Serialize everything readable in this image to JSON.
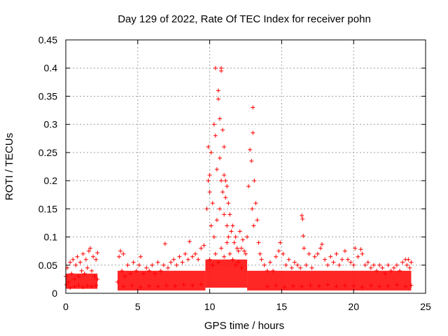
{
  "chart_data": {
    "type": "scatter",
    "title": "Day 129 of 2022, Rate Of TEC Index for receiver pohn",
    "xlabel": "GPS time / hours",
    "ylabel": "ROTI / TECUs",
    "xlim": [
      0,
      25
    ],
    "ylim": [
      0,
      0.45
    ],
    "x_ticks": [
      0,
      5,
      10,
      15,
      20,
      25
    ],
    "y_ticks": [
      0,
      0.05,
      0.1,
      0.15,
      0.2,
      0.25,
      0.3,
      0.35,
      0.4,
      0.45
    ],
    "x_tick_labels": [
      "0",
      "5",
      "10",
      "15",
      "20",
      "25"
    ],
    "y_tick_labels": [
      "0",
      "0.05",
      "0.1",
      "0.15",
      "0.2",
      "0.25",
      "0.3",
      "0.35",
      "0.4",
      "0.45"
    ],
    "grid": true,
    "marker": "plus",
    "color": "#ff0000",
    "series": [
      {
        "points": [
          [
            0.0,
            0.03
          ],
          [
            0.1,
            0.045
          ],
          [
            0.2,
            0.02
          ],
          [
            0.3,
            0.055
          ],
          [
            0.4,
            0.035
          ],
          [
            0.5,
            0.06
          ],
          [
            0.6,
            0.025
          ],
          [
            0.7,
            0.05
          ],
          [
            0.8,
            0.065
          ],
          [
            0.9,
            0.03
          ],
          [
            1.0,
            0.055
          ],
          [
            1.1,
            0.04
          ],
          [
            1.2,
            0.07
          ],
          [
            1.3,
            0.035
          ],
          [
            1.4,
            0.06
          ],
          [
            1.5,
            0.045
          ],
          [
            1.6,
            0.075
          ],
          [
            1.7,
            0.08
          ],
          [
            1.8,
            0.04
          ],
          [
            1.9,
            0.065
          ],
          [
            2.0,
            0.03
          ],
          [
            2.1,
            0.06
          ],
          [
            2.2,
            0.025
          ],
          [
            2.2,
            0.072
          ],
          [
            0.05,
            0.015
          ],
          [
            0.3,
            0.01
          ],
          [
            0.6,
            0.012
          ],
          [
            0.9,
            0.014
          ],
          [
            1.2,
            0.011
          ],
          [
            1.5,
            0.013
          ],
          [
            1.8,
            0.012
          ],
          [
            2.1,
            0.014
          ],
          [
            3.6,
            0.02
          ],
          [
            3.7,
            0.065
          ],
          [
            3.8,
            0.075
          ],
          [
            3.9,
            0.04
          ],
          [
            4.0,
            0.07
          ],
          [
            4.1,
            0.03
          ],
          [
            4.3,
            0.05
          ],
          [
            4.5,
            0.035
          ],
          [
            4.7,
            0.055
          ],
          [
            4.9,
            0.04
          ],
          [
            5.1,
            0.05
          ],
          [
            5.2,
            0.065
          ],
          [
            5.4,
            0.035
          ],
          [
            5.6,
            0.045
          ],
          [
            5.8,
            0.04
          ],
          [
            6.0,
            0.05
          ],
          [
            6.2,
            0.035
          ],
          [
            6.4,
            0.055
          ],
          [
            6.6,
            0.04
          ],
          [
            6.8,
            0.05
          ],
          [
            6.9,
            0.088
          ],
          [
            7.1,
            0.045
          ],
          [
            7.3,
            0.055
          ],
          [
            7.5,
            0.06
          ],
          [
            7.7,
            0.05
          ],
          [
            7.9,
            0.065
          ],
          [
            8.1,
            0.055
          ],
          [
            8.3,
            0.07
          ],
          [
            8.5,
            0.06
          ],
          [
            8.6,
            0.092
          ],
          [
            8.8,
            0.065
          ],
          [
            9.0,
            0.07
          ],
          [
            9.2,
            0.06
          ],
          [
            9.4,
            0.08
          ],
          [
            9.6,
            0.085
          ],
          [
            4.0,
            0.012
          ],
          [
            4.6,
            0.014
          ],
          [
            5.2,
            0.011
          ],
          [
            5.8,
            0.013
          ],
          [
            6.4,
            0.012
          ],
          [
            7.0,
            0.014
          ],
          [
            7.6,
            0.013
          ],
          [
            8.2,
            0.015
          ],
          [
            8.8,
            0.014
          ],
          [
            9.4,
            0.016
          ],
          [
            9.8,
            0.15
          ],
          [
            9.9,
            0.2
          ],
          [
            9.9,
            0.26
          ],
          [
            10.0,
            0.21
          ],
          [
            10.0,
            0.18
          ],
          [
            10.1,
            0.25
          ],
          [
            10.1,
            0.12
          ],
          [
            10.2,
            0.16
          ],
          [
            10.3,
            0.3
          ],
          [
            10.3,
            0.1
          ],
          [
            10.4,
            0.4
          ],
          [
            10.4,
            0.28
          ],
          [
            10.5,
            0.13
          ],
          [
            10.5,
            0.22
          ],
          [
            10.6,
            0.36
          ],
          [
            10.6,
            0.345
          ],
          [
            10.7,
            0.31
          ],
          [
            10.7,
            0.24
          ],
          [
            10.7,
            0.15
          ],
          [
            10.8,
            0.4
          ],
          [
            10.8,
            0.395
          ],
          [
            10.8,
            0.2
          ],
          [
            10.9,
            0.29
          ],
          [
            10.9,
            0.18
          ],
          [
            11.0,
            0.26
          ],
          [
            11.0,
            0.21
          ],
          [
            11.0,
            0.14
          ],
          [
            11.1,
            0.2
          ],
          [
            11.1,
            0.17
          ],
          [
            11.2,
            0.19
          ],
          [
            11.2,
            0.12
          ],
          [
            11.3,
            0.16
          ],
          [
            11.3,
            0.1
          ],
          [
            11.4,
            0.14
          ],
          [
            11.5,
            0.11
          ],
          [
            11.6,
            0.12
          ],
          [
            11.7,
            0.09
          ],
          [
            11.8,
            0.1
          ],
          [
            11.9,
            0.08
          ],
          [
            12.0,
            0.075
          ],
          [
            12.1,
            0.11
          ],
          [
            12.2,
            0.08
          ],
          [
            12.3,
            0.095
          ],
          [
            12.4,
            0.075
          ],
          [
            10.0,
            0.06
          ],
          [
            10.2,
            0.05
          ],
          [
            10.4,
            0.07
          ],
          [
            10.6,
            0.055
          ],
          [
            10.8,
            0.08
          ],
          [
            11.0,
            0.065
          ],
          [
            11.2,
            0.09
          ],
          [
            11.4,
            0.07
          ],
          [
            11.6,
            0.06
          ],
          [
            11.8,
            0.05
          ],
          [
            12.0,
            0.055
          ],
          [
            12.2,
            0.045
          ],
          [
            12.5,
            0.07
          ],
          [
            12.6,
            0.1
          ],
          [
            12.7,
            0.19
          ],
          [
            12.8,
            0.255
          ],
          [
            12.9,
            0.235
          ],
          [
            12.95,
            0.15
          ],
          [
            13.0,
            0.33
          ],
          [
            13.0,
            0.285
          ],
          [
            13.05,
            0.12
          ],
          [
            13.1,
            0.2
          ],
          [
            13.2,
            0.16
          ],
          [
            13.3,
            0.13
          ],
          [
            13.4,
            0.09
          ],
          [
            13.5,
            0.07
          ],
          [
            13.6,
            0.06
          ],
          [
            13.8,
            0.05
          ],
          [
            14.0,
            0.04
          ],
          [
            14.2,
            0.055
          ],
          [
            14.4,
            0.04
          ],
          [
            14.6,
            0.065
          ],
          [
            14.8,
            0.075
          ],
          [
            14.9,
            0.09
          ],
          [
            15.1,
            0.07
          ],
          [
            15.3,
            0.05
          ],
          [
            15.5,
            0.06
          ],
          [
            15.7,
            0.045
          ],
          [
            15.9,
            0.055
          ],
          [
            16.1,
            0.05
          ],
          [
            16.3,
            0.045
          ],
          [
            16.4,
            0.138
          ],
          [
            16.45,
            0.132
          ],
          [
            16.5,
            0.102
          ],
          [
            16.55,
            0.08
          ],
          [
            16.7,
            0.05
          ],
          [
            16.9,
            0.07
          ],
          [
            17.1,
            0.045
          ],
          [
            17.3,
            0.065
          ],
          [
            17.5,
            0.07
          ],
          [
            17.7,
            0.08
          ],
          [
            17.8,
            0.087
          ],
          [
            18.0,
            0.06
          ],
          [
            18.2,
            0.05
          ],
          [
            18.4,
            0.065
          ],
          [
            18.6,
            0.055
          ],
          [
            18.8,
            0.07
          ],
          [
            19.0,
            0.05
          ],
          [
            19.2,
            0.06
          ],
          [
            19.4,
            0.075
          ],
          [
            19.6,
            0.06
          ],
          [
            19.8,
            0.055
          ],
          [
            20.0,
            0.05
          ],
          [
            20.1,
            0.08
          ],
          [
            20.3,
            0.065
          ],
          [
            20.5,
            0.078
          ],
          [
            20.6,
            0.07
          ],
          [
            20.8,
            0.05
          ],
          [
            21.0,
            0.055
          ],
          [
            21.2,
            0.045
          ],
          [
            21.4,
            0.05
          ],
          [
            21.6,
            0.04
          ],
          [
            21.8,
            0.05
          ],
          [
            22.0,
            0.045
          ],
          [
            22.2,
            0.035
          ],
          [
            22.4,
            0.05
          ],
          [
            22.6,
            0.04
          ],
          [
            22.8,
            0.045
          ],
          [
            23.0,
            0.05
          ],
          [
            23.2,
            0.04
          ],
          [
            23.4,
            0.055
          ],
          [
            23.6,
            0.06
          ],
          [
            23.7,
            0.05
          ],
          [
            23.8,
            0.06
          ],
          [
            23.9,
            0.045
          ],
          [
            24.0,
            0.055
          ],
          [
            14.0,
            0.012
          ],
          [
            14.6,
            0.014
          ],
          [
            15.2,
            0.011
          ],
          [
            15.8,
            0.013
          ],
          [
            16.4,
            0.012
          ],
          [
            17.0,
            0.014
          ],
          [
            17.6,
            0.013
          ],
          [
            18.2,
            0.015
          ],
          [
            18.8,
            0.012
          ],
          [
            19.4,
            0.014
          ],
          [
            20.0,
            0.013
          ],
          [
            20.6,
            0.011
          ],
          [
            21.2,
            0.014
          ],
          [
            21.8,
            0.012
          ],
          [
            22.4,
            0.013
          ],
          [
            23.0,
            0.015
          ],
          [
            23.6,
            0.012
          ],
          [
            24.0,
            0.014
          ]
        ]
      }
    ],
    "density_bands": [
      {
        "x0": 0.0,
        "x1": 2.2,
        "y0": 0.008,
        "y1": 0.035
      },
      {
        "x0": 3.6,
        "x1": 9.7,
        "y0": 0.005,
        "y1": 0.04
      },
      {
        "x0": 9.7,
        "x1": 12.6,
        "y0": 0.01,
        "y1": 0.06
      },
      {
        "x0": 12.6,
        "x1": 24.0,
        "y0": 0.005,
        "y1": 0.04
      }
    ]
  }
}
